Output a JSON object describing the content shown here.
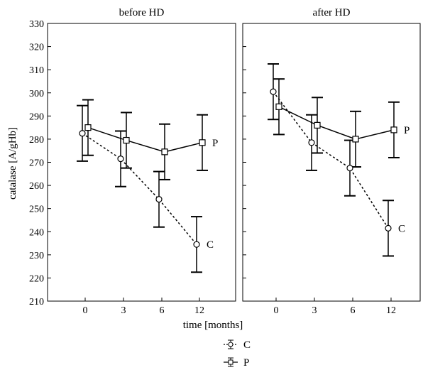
{
  "chart_data": {
    "type": "line",
    "ylabel": "catalase [A/gHb]",
    "xlabel": "time [months]",
    "ylim": [
      210,
      330
    ],
    "yticks": [
      210,
      220,
      230,
      240,
      250,
      260,
      270,
      280,
      290,
      300,
      310,
      320,
      330
    ],
    "categories": [
      "0",
      "3",
      "6",
      "12"
    ],
    "grid": false,
    "legend_position": "bottom",
    "legend": [
      {
        "series": "C",
        "label": "C",
        "line_style": "dotted",
        "marker": "circle"
      },
      {
        "series": "P",
        "label": "P",
        "line_style": "solid",
        "marker": "square"
      }
    ],
    "panels": [
      {
        "title": "before HD",
        "series": [
          {
            "name": "C",
            "values": [
              282.5,
              271.5,
              254,
              234.5
            ],
            "err": [
              12,
              12,
              12,
              12
            ]
          },
          {
            "name": "P",
            "values": [
              285,
              279.5,
              274.5,
              278.5
            ],
            "err": [
              12,
              12,
              12,
              12
            ]
          }
        ]
      },
      {
        "title": "after HD",
        "series": [
          {
            "name": "C",
            "values": [
              300.5,
              278.5,
              267.5,
              241.5
            ],
            "err": [
              12,
              12,
              12,
              12
            ]
          },
          {
            "name": "P",
            "values": [
              294,
              286,
              280,
              284
            ],
            "err": [
              12,
              12,
              12,
              12
            ]
          }
        ]
      }
    ]
  }
}
